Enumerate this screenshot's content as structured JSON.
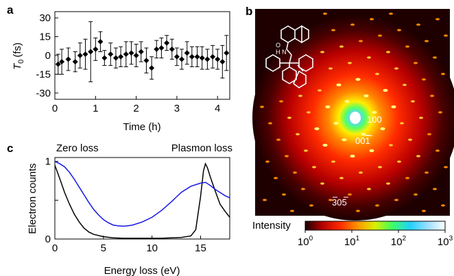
{
  "panels": {
    "a": "a",
    "b": "b",
    "c": "c"
  },
  "chart_data": [
    {
      "panel": "a",
      "type": "scatter",
      "xlabel": "Time (h)",
      "ylabel_main": "T",
      "ylabel_sub": "0",
      "ylabel_unit": "(fs)",
      "xlim": [
        0,
        4.3
      ],
      "ylim": [
        -35,
        35
      ],
      "xticks": [
        0,
        1,
        2,
        3,
        4
      ],
      "yticks": [
        30,
        15,
        0,
        -15,
        -30
      ],
      "series": [
        {
          "x": [
            0.08,
            0.17,
            0.33,
            0.5,
            0.62,
            0.75,
            0.88,
            1.0,
            1.12,
            1.22,
            1.37,
            1.5,
            1.62,
            1.75,
            1.88,
            2.0,
            2.12,
            2.25,
            2.38,
            2.5,
            2.62,
            2.75,
            2.88,
            3.0,
            3.12,
            3.25,
            3.37,
            3.5,
            3.62,
            3.75,
            3.88,
            4.0,
            4.12,
            4.22
          ],
          "y": [
            -7,
            -5,
            -3,
            -5,
            0,
            1,
            3,
            5,
            11,
            -2,
            1,
            -2,
            -1,
            1,
            2,
            0,
            3,
            -4,
            -10,
            5,
            6,
            10,
            5,
            -1,
            -3,
            2,
            -1,
            -1,
            -2,
            -3,
            -1,
            -3,
            -5,
            2
          ],
          "err": [
            8,
            10,
            9,
            8,
            10,
            12,
            24,
            9,
            8,
            6,
            9,
            8,
            8,
            10,
            9,
            9,
            8,
            10,
            9,
            7,
            8,
            6,
            8,
            7,
            8,
            9,
            8,
            8,
            9,
            8,
            9,
            8,
            13,
            14
          ]
        }
      ]
    },
    {
      "panel": "c",
      "type": "line",
      "xlabel": "Energy loss (eV)",
      "ylabel": "Electron counts",
      "xlim": [
        0,
        18
      ],
      "ylim": [
        0,
        1.05
      ],
      "xticks": [
        0,
        5,
        10,
        15
      ],
      "ytick_labels": [
        "0",
        "0.5",
        "1"
      ],
      "yticks": [
        0,
        0.5,
        1
      ],
      "annotations": [
        "Zero loss",
        "Plasmon loss"
      ],
      "series": [
        {
          "color": "#000000",
          "x": [
            0,
            0.5,
            1,
            1.5,
            2,
            2.5,
            3,
            3.5,
            4,
            5,
            6,
            7,
            8,
            9,
            10,
            11,
            12,
            13,
            14,
            14.5,
            15,
            15.3,
            15.5,
            15.7,
            16,
            16.5,
            17,
            17.5,
            18
          ],
          "y": [
            0.95,
            0.78,
            0.6,
            0.45,
            0.32,
            0.22,
            0.14,
            0.09,
            0.06,
            0.03,
            0.015,
            0.01,
            0.01,
            0.01,
            0.01,
            0.01,
            0.015,
            0.02,
            0.04,
            0.12,
            0.55,
            0.88,
            0.97,
            0.92,
            0.8,
            0.62,
            0.45,
            0.36,
            0.28
          ]
        },
        {
          "color": "#1515e6",
          "x": [
            0,
            0.5,
            1,
            1.5,
            2,
            2.5,
            3,
            3.5,
            4,
            4.5,
            5,
            5.5,
            6,
            6.5,
            7,
            7.5,
            8,
            9,
            10,
            11,
            12,
            13,
            14,
            15,
            15.5,
            16,
            16.5,
            17,
            17.5,
            18
          ],
          "y": [
            1.0,
            0.97,
            0.93,
            0.86,
            0.77,
            0.67,
            0.57,
            0.47,
            0.38,
            0.31,
            0.25,
            0.21,
            0.18,
            0.17,
            0.165,
            0.17,
            0.18,
            0.22,
            0.28,
            0.37,
            0.48,
            0.6,
            0.68,
            0.72,
            0.73,
            0.69,
            0.64,
            0.6,
            0.56,
            0.53
          ]
        }
      ]
    },
    {
      "panel": "b",
      "type": "heatmap",
      "spot_labels": [
        "100",
        "00",
        "1",
        "3",
        "0",
        "5"
      ],
      "colorbar": {
        "label": "Intensity",
        "ticks": [
          {
            "base": "10",
            "exp": "0"
          },
          {
            "base": "10",
            "exp": "1"
          },
          {
            "base": "10",
            "exp": "2"
          },
          {
            "base": "10",
            "exp": "3"
          }
        ],
        "colors": [
          "#1a0000",
          "#b30000",
          "#ff2a00",
          "#ff9900",
          "#d8f000",
          "#40ff60",
          "#20d0ff",
          "#a0e0ff",
          "#ffffff"
        ]
      }
    }
  ]
}
